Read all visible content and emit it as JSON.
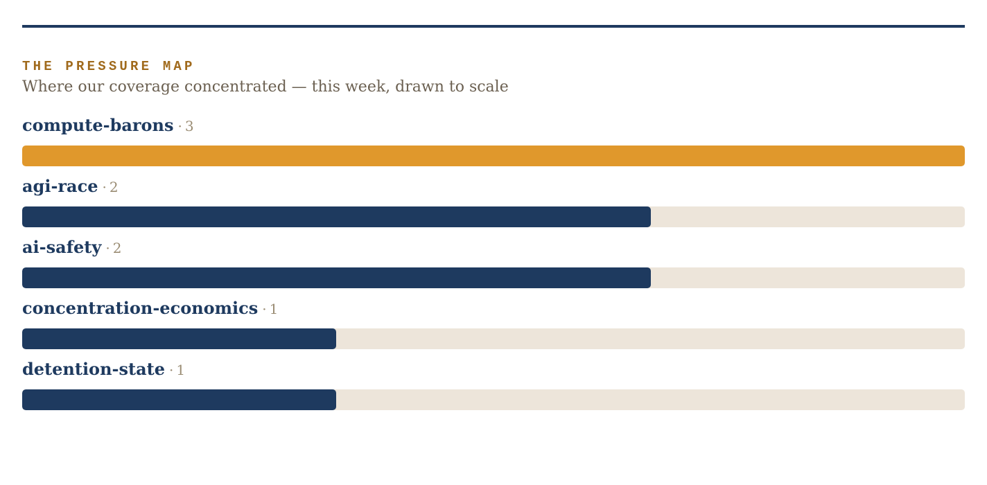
{
  "section": {
    "kicker": "THE PRESSURE MAP",
    "subtitle": "Where our coverage concentrated — this week, drawn to scale"
  },
  "colors": {
    "rule": "#1e3a5f",
    "kicker": "#a06a1c",
    "subtitle": "#6b6051",
    "label": "#1e3a5f",
    "count": "#9a8c73",
    "track": "#ede5da",
    "bar": "#1e3a5f",
    "bar_highlight": "#e0982c"
  },
  "chart_data": {
    "type": "bar",
    "orientation": "horizontal",
    "categories": [
      "compute-barons",
      "agi-race",
      "ai-safety",
      "concentration-economics",
      "detention-state"
    ],
    "values": [
      3,
      2,
      2,
      1,
      1
    ],
    "separator": "·",
    "xlim": [
      0,
      3
    ],
    "highlight_index": 0,
    "grid": false,
    "legend": "none"
  }
}
